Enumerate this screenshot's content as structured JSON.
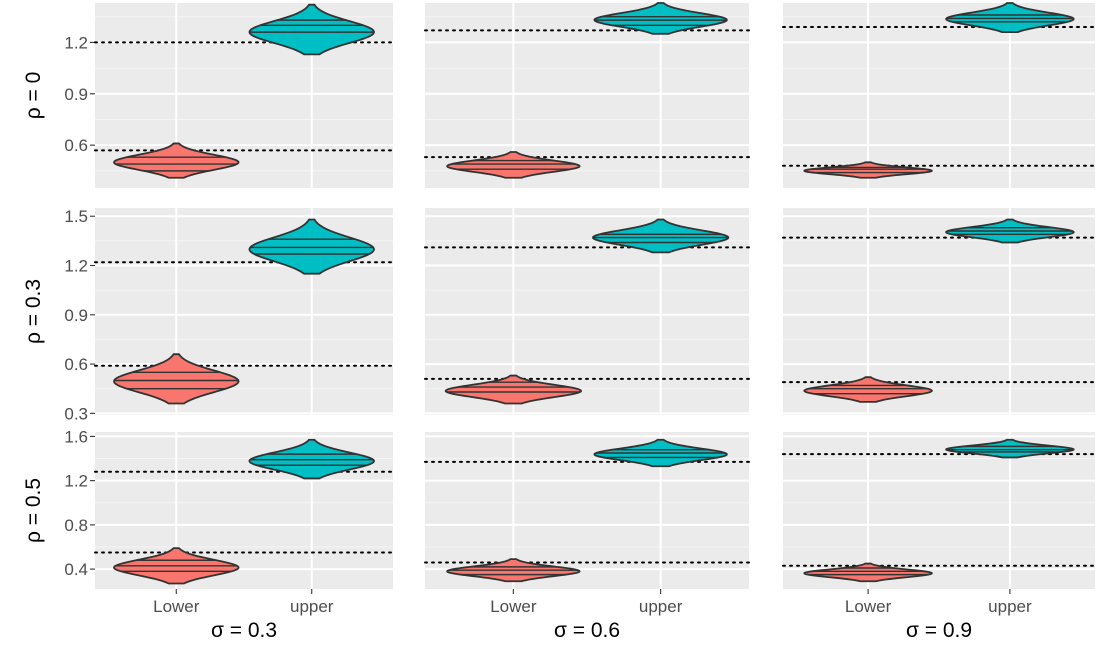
{
  "colors": {
    "panel_bg": "#EBEBEB",
    "grid_major": "#FFFFFF",
    "grid_minor": "#F5F5F5",
    "lower_fill": "#F8766D",
    "upper_fill": "#00BFC4",
    "outline": "#333333",
    "reference_line": "#000000",
    "tick_text": "#4D4D4D",
    "label_text": "#000000"
  },
  "chart_data": {
    "type": "violin",
    "facet_layout": "grid",
    "x_categories": [
      "Lower",
      "upper"
    ],
    "column_labels": [
      "σ = 0.3",
      "σ = 0.6",
      "σ = 0.9"
    ],
    "row_labels": [
      "ρ = 0",
      "ρ = 0.3",
      "ρ = 0.5"
    ],
    "rows": [
      {
        "ylim": [
          0.35,
          1.43
        ],
        "yticks": [
          0.6,
          0.9,
          1.2
        ],
        "ytick_labels": [
          "0.6",
          "0.9",
          "1.2"
        ],
        "panels": [
          {
            "reference_lines": [
              0.57,
              1.2
            ],
            "violins": {
              "Lower": {
                "min": 0.41,
                "max": 0.61,
                "quantiles": [
                  0.45,
                  0.49,
                  0.53
                ],
                "width": 0.92
              },
              "upper": {
                "min": 1.13,
                "max": 1.42,
                "quantiles": [
                  1.26,
                  1.3,
                  1.33
                ],
                "width": 0.92
              }
            }
          },
          {
            "reference_lines": [
              0.53,
              1.27
            ],
            "violins": {
              "Lower": {
                "min": 0.41,
                "max": 0.56,
                "quantiles": [
                  0.46,
                  0.49,
                  0.51
                ],
                "width": 0.9
              },
              "upper": {
                "min": 1.25,
                "max": 1.43,
                "quantiles": [
                  1.3,
                  1.33,
                  1.35
                ],
                "width": 0.9
              }
            }
          },
          {
            "reference_lines": [
              0.48,
              1.29
            ],
            "violins": {
              "Lower": {
                "min": 0.41,
                "max": 0.5,
                "quantiles": [
                  0.44,
                  0.46,
                  0.47
                ],
                "width": 0.9
              },
              "upper": {
                "min": 1.26,
                "max": 1.43,
                "quantiles": [
                  1.32,
                  1.34,
                  1.36
                ],
                "width": 0.9
              }
            }
          }
        ]
      },
      {
        "ylim": [
          0.29,
          1.55
        ],
        "yticks": [
          0.3,
          0.6,
          0.9,
          1.2,
          1.5
        ],
        "ytick_labels": [
          "0.3",
          "0.6",
          "0.9",
          "1.2",
          "1.5"
        ],
        "panels": [
          {
            "reference_lines": [
              0.59,
              1.22
            ],
            "violins": {
              "Lower": {
                "min": 0.36,
                "max": 0.66,
                "quantiles": [
                  0.45,
                  0.5,
                  0.55
                ],
                "width": 0.92
              },
              "upper": {
                "min": 1.15,
                "max": 1.48,
                "quantiles": [
                  1.27,
                  1.31,
                  1.36
                ],
                "width": 0.92
              }
            }
          },
          {
            "reference_lines": [
              0.51,
              1.31
            ],
            "violins": {
              "Lower": {
                "min": 0.36,
                "max": 0.53,
                "quantiles": [
                  0.43,
                  0.46,
                  0.49
                ],
                "width": 0.92
              },
              "upper": {
                "min": 1.28,
                "max": 1.48,
                "quantiles": [
                  1.34,
                  1.37,
                  1.39
                ],
                "width": 0.92
              }
            }
          },
          {
            "reference_lines": [
              0.49,
              1.37
            ],
            "violins": {
              "Lower": {
                "min": 0.37,
                "max": 0.52,
                "quantiles": [
                  0.42,
                  0.45,
                  0.47
                ],
                "width": 0.9
              },
              "upper": {
                "min": 1.34,
                "max": 1.48,
                "quantiles": [
                  1.39,
                  1.41,
                  1.43
                ],
                "width": 0.9
              }
            }
          }
        ]
      },
      {
        "ylim": [
          0.22,
          1.64
        ],
        "yticks": [
          0.4,
          0.8,
          1.2,
          1.6
        ],
        "ytick_labels": [
          "0.4",
          "0.8",
          "1.2",
          "1.6"
        ],
        "panels": [
          {
            "reference_lines": [
              0.55,
              1.28
            ],
            "violins": {
              "Lower": {
                "min": 0.27,
                "max": 0.59,
                "quantiles": [
                  0.38,
                  0.43,
                  0.48
                ],
                "width": 0.92
              },
              "upper": {
                "min": 1.22,
                "max": 1.57,
                "quantiles": [
                  1.34,
                  1.39,
                  1.44
                ],
                "width": 0.92
              }
            }
          },
          {
            "reference_lines": [
              0.46,
              1.37
            ],
            "violins": {
              "Lower": {
                "min": 0.29,
                "max": 0.49,
                "quantiles": [
                  0.35,
                  0.39,
                  0.42
                ],
                "width": 0.9
              },
              "upper": {
                "min": 1.33,
                "max": 1.57,
                "quantiles": [
                  1.41,
                  1.45,
                  1.48
                ],
                "width": 0.9
              }
            }
          },
          {
            "reference_lines": [
              0.43,
              1.44
            ],
            "violins": {
              "Lower": {
                "min": 0.29,
                "max": 0.45,
                "quantiles": [
                  0.35,
                  0.38,
                  0.41
                ],
                "width": 0.9
              },
              "upper": {
                "min": 1.41,
                "max": 1.57,
                "quantiles": [
                  1.46,
                  1.48,
                  1.51
                ],
                "width": 0.9
              }
            }
          }
        ]
      }
    ]
  }
}
